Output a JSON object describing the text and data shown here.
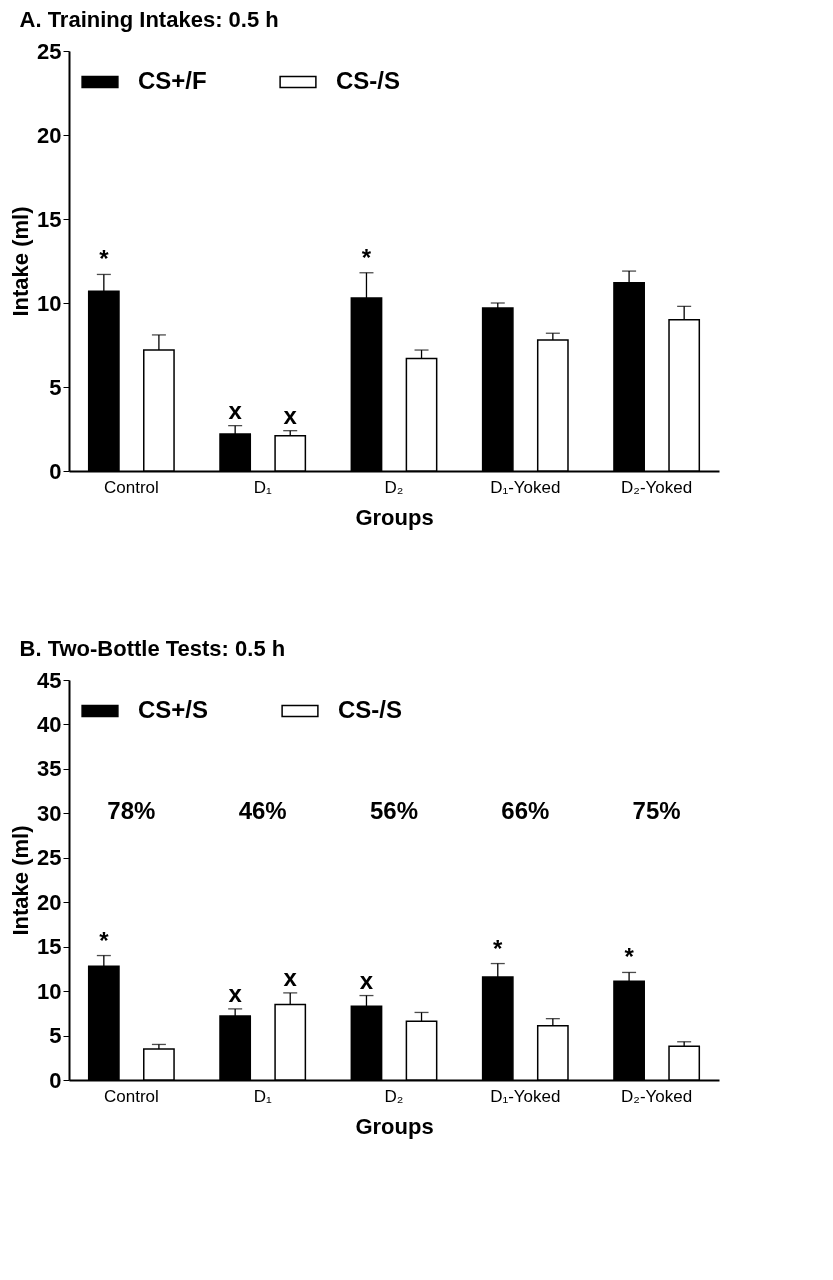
{
  "chart_data": [
    {
      "type": "bar",
      "title": "A. Training Intakes: 0.5 h",
      "xlabel": "Groups",
      "ylabel": "Intake (ml)",
      "categories": [
        "Control",
        "D₁",
        "D₂",
        "D₁-Yoked",
        "D₂-Yoked"
      ],
      "series": [
        {
          "name": "CS+/F",
          "color": "#000000",
          "values": [
            10.7,
            2.2,
            10.3,
            9.7,
            11.2
          ],
          "errors": [
            1.0,
            0.5,
            1.5,
            0.3,
            0.7
          ],
          "value_labels": [
            "*",
            "x",
            "*",
            null,
            null
          ]
        },
        {
          "name": "CS-/S",
          "color": "#ffffff",
          "values": [
            7.2,
            2.1,
            6.7,
            7.8,
            9.0
          ],
          "errors": [
            0.9,
            0.3,
            0.5,
            0.4,
            0.8
          ],
          "value_labels": [
            null,
            "x",
            null,
            null,
            null
          ]
        }
      ],
      "ylim": [
        0,
        25
      ],
      "yticks": [
        0,
        5,
        10,
        15,
        20,
        25
      ],
      "legend": "top left"
    },
    {
      "type": "bar",
      "title": "B. Two-Bottle Tests: 0.5 h",
      "xlabel": "Groups",
      "ylabel": "Intake (ml)",
      "categories": [
        "Control",
        "D₁",
        "D₂",
        "D₁-Yoked",
        "D₂-Yoked"
      ],
      "series": [
        {
          "name": "CS+/S",
          "color": "#000000",
          "values": [
            12.8,
            7.2,
            8.3,
            11.6,
            11.1
          ],
          "errors": [
            1.2,
            0.8,
            1.2,
            1.5,
            1.0
          ],
          "value_labels": [
            "*",
            "x",
            "x",
            "*",
            "*"
          ]
        },
        {
          "name": "CS-/S",
          "color": "#ffffff",
          "values": [
            3.5,
            8.5,
            6.6,
            6.1,
            3.8
          ],
          "errors": [
            0.5,
            1.3,
            1.0,
            0.8,
            0.5
          ],
          "value_labels": [
            null,
            "x",
            null,
            null,
            null
          ]
        }
      ],
      "ylim": [
        0,
        45
      ],
      "yticks": [
        0,
        5,
        10,
        15,
        20,
        25,
        30,
        35,
        40,
        45
      ],
      "legend": "top left",
      "annotations": [
        "78%",
        "46%",
        "56%",
        "66%",
        "75%"
      ]
    }
  ]
}
